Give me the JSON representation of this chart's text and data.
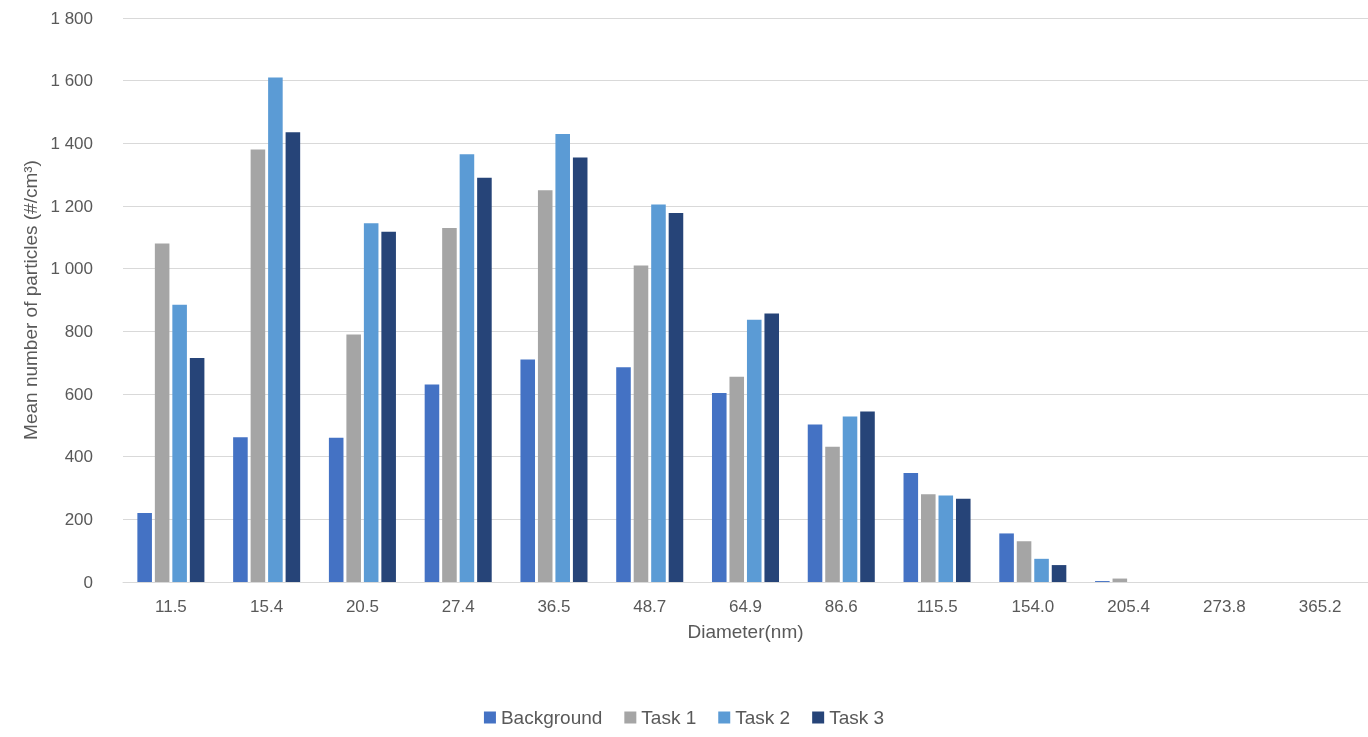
{
  "chart_data": {
    "type": "bar",
    "xlabel": "Diameter(nm)",
    "ylabel": "Mean number of particles (#/cm³)",
    "categories": [
      "11.5",
      "15.4",
      "20.5",
      "27.4",
      "36.5",
      "48.7",
      "64.9",
      "86.6",
      "115.5",
      "154.0",
      "205.4",
      "273.8",
      "365.2"
    ],
    "series": [
      {
        "name": "Background",
        "color": "#4472c4",
        "values": [
          220,
          462,
          460,
          630,
          710,
          685,
          603,
          503,
          348,
          155,
          3,
          0,
          0
        ]
      },
      {
        "name": "Task 1",
        "color": "#a5a5a5",
        "values": [
          1080,
          1380,
          790,
          1130,
          1250,
          1010,
          655,
          432,
          280,
          130,
          11,
          0,
          0
        ]
      },
      {
        "name": "Task 2",
        "color": "#5b9bd5",
        "values": [
          885,
          1610,
          1145,
          1365,
          1430,
          1205,
          837,
          528,
          276,
          74,
          0,
          0,
          0
        ]
      },
      {
        "name": "Task 3",
        "color": "#264478",
        "values": [
          715,
          1435,
          1118,
          1290,
          1355,
          1178,
          857,
          544,
          266,
          54,
          0,
          0,
          0
        ]
      }
    ],
    "ylim": [
      0,
      1800
    ],
    "yticks": [
      0,
      200,
      400,
      600,
      800,
      {
        "value": 1000,
        "label": "1 000"
      },
      {
        "value": 1200,
        "label": "1 200"
      },
      {
        "value": 1400,
        "label": "1 400"
      },
      {
        "value": 1600,
        "label": "1 600"
      },
      {
        "value": 1800,
        "label": "1 800"
      }
    ],
    "grid": "y",
    "legend": "bottom"
  }
}
